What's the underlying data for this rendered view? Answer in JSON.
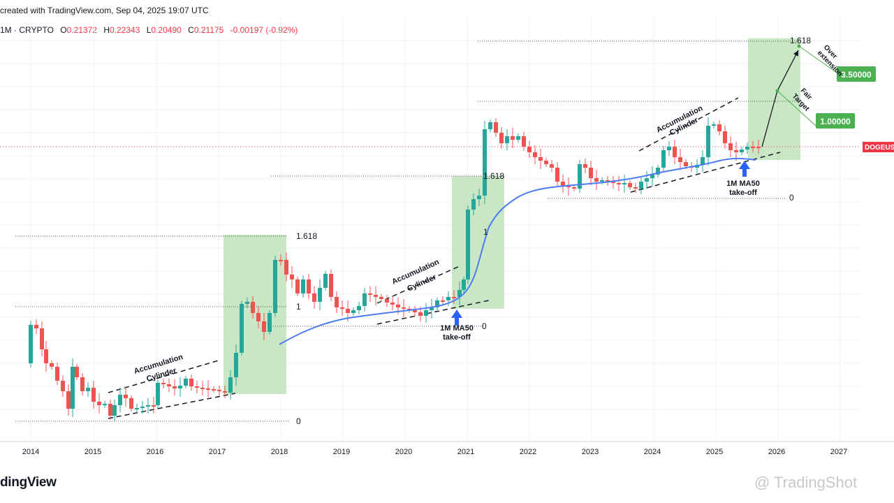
{
  "header": {
    "created_text": "created with TradingView.com, Sep 04, 2025 19:07 UTC",
    "symbol_text": "1M · CRYPTO",
    "o_label": "O",
    "o_value": "0.21372",
    "h_label": "H",
    "h_value": "0.22343",
    "l_label": "L",
    "l_value": "0.20490",
    "c_label": "C",
    "c_value": "0.21175",
    "change": "-0.00197 (-0.92%)"
  },
  "footer": {
    "logo_text": "dingView",
    "watermark": "@ TradingShot"
  },
  "chart_data": {
    "type": "candlestick",
    "symbol_tag": "DOGEUS",
    "x_labels": [
      "2014",
      "2015",
      "2016",
      "2017",
      "2018",
      "2019",
      "2020",
      "2021",
      "2022",
      "2023",
      "2024",
      "2025",
      "2026",
      "2027"
    ],
    "colors": {
      "up": "#26a69a",
      "down": "#ef5350",
      "ma": "#4c7cf3",
      "zone": "#b7dfb0",
      "target_box": "#4caf50",
      "price_tag": "#f23645"
    },
    "annotations": {
      "fib_1618": "1.618",
      "fib_1": "1",
      "fib_0": "0",
      "cylinder_l1": "Accumulation",
      "cylinder_l2": "Cylinder",
      "ma_l1": "1M MA50",
      "ma_l2": "take-off",
      "over_l1": "Over",
      "over_l2": "extension",
      "fair_l1": "Fair",
      "fair_l2": "Target",
      "target_over": "3.50000",
      "target_fair": "1.00000"
    }
  }
}
